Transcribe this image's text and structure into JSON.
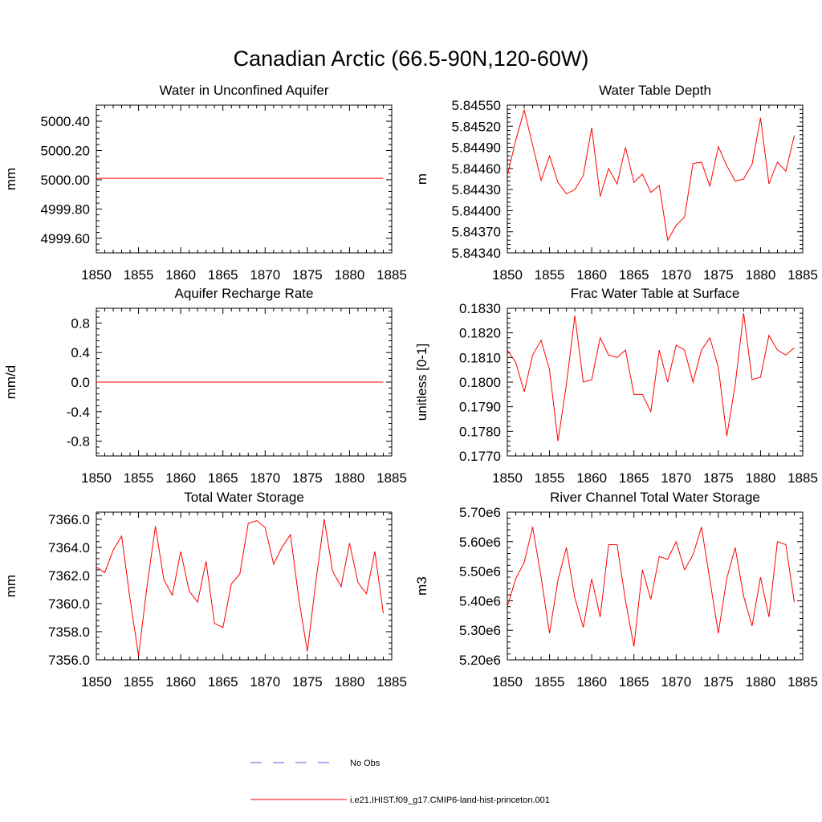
{
  "figure": {
    "title": "Canadian Arctic (66.5-90N,120-60W)"
  },
  "legend": {
    "items": [
      {
        "label": "No Obs",
        "color": "#5a5ad6",
        "dashed": true
      },
      {
        "label": "i.e21.IHIST.f09_g17.CMIP6-land-hist-princeton.001",
        "color": "#ff0000",
        "dashed": false
      }
    ]
  },
  "chart_data": [
    {
      "type": "line",
      "title": "Water in Unconfined Aquifer",
      "ylabel": "mm",
      "xlim": [
        1850,
        1885
      ],
      "ylim": [
        4999.5,
        5000.51
      ],
      "xticks": [
        "1850",
        "1855",
        "1860",
        "1865",
        "1870",
        "1875",
        "1880",
        "1885"
      ],
      "yticks": [
        "4999.60",
        "4999.80",
        "5000.00",
        "5000.20",
        "5000.40"
      ],
      "series": [
        {
          "color": "#ff0000",
          "x": [
            1850,
            1851,
            1852,
            1853,
            1854,
            1855,
            1856,
            1857,
            1858,
            1859,
            1860,
            1861,
            1862,
            1863,
            1864,
            1865,
            1866,
            1867,
            1868,
            1869,
            1870,
            1871,
            1872,
            1873,
            1874,
            1875,
            1876,
            1877,
            1878,
            1879,
            1880,
            1881,
            1882,
            1883,
            1884
          ],
          "values": [
            5000.01,
            5000.01,
            5000.01,
            5000.01,
            5000.01,
            5000.01,
            5000.01,
            5000.01,
            5000.01,
            5000.01,
            5000.01,
            5000.01,
            5000.01,
            5000.01,
            5000.01,
            5000.01,
            5000.01,
            5000.01,
            5000.01,
            5000.01,
            5000.01,
            5000.01,
            5000.01,
            5000.01,
            5000.01,
            5000.01,
            5000.01,
            5000.01,
            5000.01,
            5000.01,
            5000.01,
            5000.01,
            5000.01,
            5000.01,
            5000.01
          ]
        }
      ]
    },
    {
      "type": "line",
      "title": "Water Table Depth",
      "ylabel": "m",
      "xlim": [
        1850,
        1885
      ],
      "ylim": [
        5.8434,
        5.8455
      ],
      "xticks": [
        "1850",
        "1855",
        "1860",
        "1865",
        "1870",
        "1875",
        "1880",
        "1885"
      ],
      "yticks": [
        "5.84340",
        "5.84370",
        "5.84400",
        "5.84430",
        "5.84460",
        "5.84490",
        "5.84520",
        "5.84550"
      ],
      "series": [
        {
          "color": "#ff0000",
          "x": [
            1850,
            1851,
            1852,
            1853,
            1854,
            1855,
            1856,
            1857,
            1858,
            1859,
            1860,
            1861,
            1862,
            1863,
            1864,
            1865,
            1866,
            1867,
            1868,
            1869,
            1870,
            1871,
            1872,
            1873,
            1874,
            1875,
            1876,
            1877,
            1878,
            1879,
            1880,
            1881,
            1882,
            1883,
            1884
          ],
          "values": [
            5.8445,
            5.845,
            5.84543,
            5.84493,
            5.84443,
            5.84478,
            5.8444,
            5.84424,
            5.8443,
            5.8445,
            5.84518,
            5.8442,
            5.8446,
            5.84438,
            5.8449,
            5.8444,
            5.84452,
            5.84426,
            5.84436,
            5.84358,
            5.84379,
            5.84391,
            5.84467,
            5.84469,
            5.84435,
            5.84491,
            5.84464,
            5.84442,
            5.84445,
            5.84466,
            5.84532,
            5.84438,
            5.84469,
            5.84456,
            5.84507
          ]
        }
      ]
    },
    {
      "type": "line",
      "title": "Aquifer Recharge Rate",
      "ylabel": "mm/d",
      "xlim": [
        1850,
        1885
      ],
      "ylim": [
        -1.0,
        1.0
      ],
      "xticks": [
        "1850",
        "1855",
        "1860",
        "1865",
        "1870",
        "1875",
        "1880",
        "1885"
      ],
      "yticks": [
        "-0.8",
        "-0.4",
        "0.0",
        "0.4",
        "0.8"
      ],
      "series": [
        {
          "color": "#ff0000",
          "x": [
            1850,
            1851,
            1852,
            1853,
            1854,
            1855,
            1856,
            1857,
            1858,
            1859,
            1860,
            1861,
            1862,
            1863,
            1864,
            1865,
            1866,
            1867,
            1868,
            1869,
            1870,
            1871,
            1872,
            1873,
            1874,
            1875,
            1876,
            1877,
            1878,
            1879,
            1880,
            1881,
            1882,
            1883,
            1884
          ],
          "values": [
            0,
            0,
            0,
            0,
            0,
            0,
            0,
            0,
            0,
            0,
            0,
            0,
            0,
            0,
            0,
            0,
            0,
            0,
            0,
            0,
            0,
            0,
            0,
            0,
            0,
            0,
            0,
            0,
            0,
            0,
            0,
            0,
            0,
            0,
            0
          ]
        }
      ]
    },
    {
      "type": "line",
      "title": "Frac Water Table at Surface",
      "ylabel": "unitless [0-1]",
      "xlim": [
        1850,
        1885
      ],
      "ylim": [
        0.177,
        0.183
      ],
      "xticks": [
        "1850",
        "1855",
        "1860",
        "1865",
        "1870",
        "1875",
        "1880",
        "1885"
      ],
      "yticks": [
        "0.1770",
        "0.1780",
        "0.1790",
        "0.1800",
        "0.1810",
        "0.1820",
        "0.1830"
      ],
      "series": [
        {
          "color": "#ff0000",
          "x": [
            1850,
            1851,
            1852,
            1853,
            1854,
            1855,
            1856,
            1857,
            1858,
            1859,
            1860,
            1861,
            1862,
            1863,
            1864,
            1865,
            1866,
            1867,
            1868,
            1869,
            1870,
            1871,
            1872,
            1873,
            1874,
            1875,
            1876,
            1877,
            1878,
            1879,
            1880,
            1881,
            1882,
            1883,
            1884
          ],
          "values": [
            0.1813,
            0.1808,
            0.1796,
            0.1811,
            0.1817,
            0.1805,
            0.1776,
            0.1799,
            0.1827,
            0.18,
            0.1801,
            0.1818,
            0.1811,
            0.181,
            0.1813,
            0.1795,
            0.1795,
            0.1788,
            0.1813,
            0.18,
            0.1815,
            0.1813,
            0.18,
            0.1813,
            0.1818,
            0.1806,
            0.1778,
            0.1799,
            0.1828,
            0.1801,
            0.1802,
            0.1819,
            0.1813,
            0.1811,
            0.1814
          ]
        }
      ]
    },
    {
      "type": "line",
      "title": "Total Water Storage",
      "ylabel": "mm",
      "xlim": [
        1850,
        1885
      ],
      "ylim": [
        7356.0,
        7366.5
      ],
      "xticks": [
        "1850",
        "1855",
        "1860",
        "1865",
        "1870",
        "1875",
        "1880",
        "1885"
      ],
      "yticks": [
        "7356.0",
        "7358.0",
        "7360.0",
        "7362.0",
        "7364.0",
        "7366.0"
      ],
      "series": [
        {
          "color": "#ff0000",
          "x": [
            1850,
            1851,
            1852,
            1853,
            1854,
            1855,
            1856,
            1857,
            1858,
            1859,
            1860,
            1861,
            1862,
            1863,
            1864,
            1865,
            1866,
            1867,
            1868,
            1869,
            1870,
            1871,
            1872,
            1873,
            1874,
            1875,
            1876,
            1877,
            1878,
            1879,
            1880,
            1881,
            1882,
            1883,
            1884
          ],
          "values": [
            7362.6,
            7362.2,
            7363.8,
            7364.8,
            7360.3,
            7356.3,
            7361.2,
            7365.5,
            7361.7,
            7360.6,
            7363.7,
            7360.9,
            7360.1,
            7363.0,
            7358.6,
            7358.3,
            7361.4,
            7362.1,
            7365.7,
            7365.9,
            7365.4,
            7362.8,
            7364.0,
            7364.9,
            7360.3,
            7356.6,
            7361.5,
            7366.0,
            7362.3,
            7361.2,
            7364.3,
            7361.5,
            7360.7,
            7363.7,
            7359.3
          ]
        }
      ]
    },
    {
      "type": "line",
      "title": "River Channel Total Water Storage",
      "ylabel": "m3",
      "xlim": [
        1850,
        1885
      ],
      "ylim": [
        5200000.0,
        5700000.0
      ],
      "xticks": [
        "1850",
        "1855",
        "1860",
        "1865",
        "1870",
        "1875",
        "1880",
        "1885"
      ],
      "yticks": [
        "5.20e6",
        "5.30e6",
        "5.40e6",
        "5.50e6",
        "5.60e6",
        "5.70e6"
      ],
      "series": [
        {
          "color": "#ff0000",
          "x": [
            1850,
            1851,
            1852,
            1853,
            1854,
            1855,
            1856,
            1857,
            1858,
            1859,
            1860,
            1861,
            1862,
            1863,
            1864,
            1865,
            1866,
            1867,
            1868,
            1869,
            1870,
            1871,
            1872,
            1873,
            1874,
            1875,
            1876,
            1877,
            1878,
            1879,
            1880,
            1881,
            1882,
            1883,
            1884
          ],
          "values": [
            5380000,
            5475000,
            5530000,
            5650000,
            5480000,
            5290000,
            5470000,
            5580000,
            5410000,
            5310000,
            5475000,
            5345000,
            5590000,
            5590000,
            5400000,
            5245000,
            5505000,
            5405000,
            5550000,
            5540000,
            5600000,
            5505000,
            5555000,
            5650000,
            5470000,
            5290000,
            5475000,
            5580000,
            5415000,
            5315000,
            5480000,
            5345000,
            5600000,
            5590000,
            5395000
          ]
        }
      ]
    }
  ]
}
